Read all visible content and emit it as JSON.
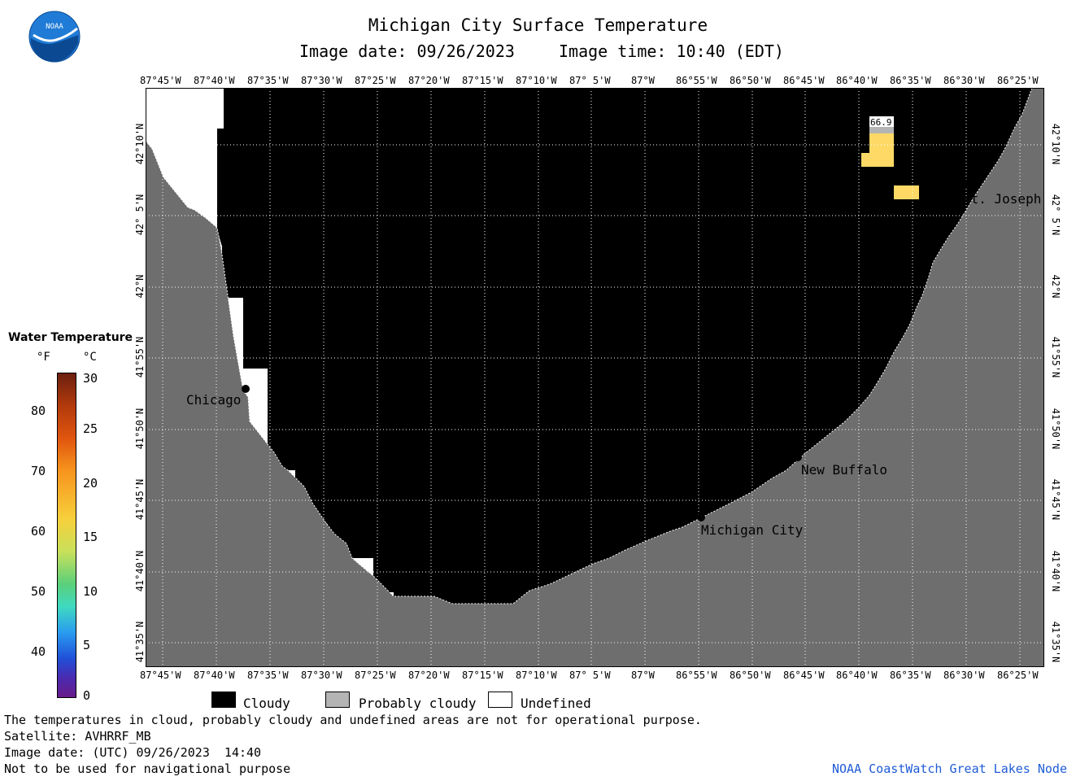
{
  "header": {
    "title": "Michigan City Surface Temperature",
    "date_line": "Image date: 09/26/2023",
    "time_line": "Image time: 10:40 (EDT)"
  },
  "logo": {
    "text": "NOAA"
  },
  "lon_ticks": [
    "87°45'W",
    "87°40'W",
    "87°35'W",
    "87°30'W",
    "87°25'W",
    "87°20'W",
    "87°15'W",
    "87°10'W",
    "87° 5'W",
    "87°W",
    "86°55'W",
    "86°50'W",
    "86°45'W",
    "86°40'W",
    "86°35'W",
    "86°30'W",
    "86°25'W"
  ],
  "lat_ticks": [
    "42°10'N",
    "42° 5'N",
    "42°N",
    "41°55'N",
    "41°50'N",
    "41°45'N",
    "41°40'N",
    "41°35'N"
  ],
  "cities": {
    "chicago": "Chicago",
    "st_joseph": "St. Joseph",
    "new_buffalo": "New Buffalo",
    "michigan_city": "Michigan City"
  },
  "temperature_label": "66.9",
  "colorbar": {
    "title": "Water Temperature",
    "unit_f": "°F",
    "unit_c": "°C",
    "f_ticks": [
      "80",
      "70",
      "60",
      "50",
      "40"
    ],
    "c_ticks": [
      "30",
      "25",
      "20",
      "15",
      "10",
      "5",
      "0"
    ]
  },
  "legend": {
    "cloudy": "Cloudy",
    "probably_cloudy": "Probably cloudy",
    "undefined": "Undefined",
    "colors": {
      "cloudy": "#000000",
      "probably_cloudy": "#b4b4b4",
      "undefined": "#ffffff",
      "land": "#6e6e6e",
      "warm_water": "#ffd966"
    }
  },
  "footer": {
    "disclaimer": "The temperatures in cloud, probably cloudy and undefined areas are not for operational purpose.",
    "satellite": "Satellite: AVHRRF_MB",
    "utc_date": "Image date: (UTC) 09/26/2023  14:40",
    "nav_warning": "Not to be used for navigational purpose",
    "credit": "NOAA CoastWatch Great Lakes Node"
  }
}
